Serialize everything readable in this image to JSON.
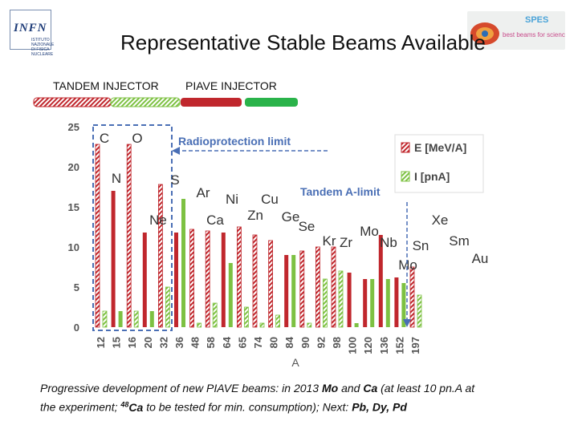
{
  "title": "Representative Stable Beams Available",
  "logos": {
    "left_text": "INFN",
    "left_subtitle": "ISTITUTO NAZIONALE DI FISICA NUCLEARE",
    "right_text": "SPES",
    "right_tagline": "best beams for science"
  },
  "injectors": {
    "tandem": "TANDEM INJECTOR",
    "piave": "PIAVE INJECTOR"
  },
  "colors": {
    "energy": "#c0272d",
    "current": "#7dc142",
    "tandem_box": "#4a6fb5",
    "annotation": "#4a6fb5"
  },
  "chart_data": {
    "type": "bar",
    "xlabel": "A",
    "ylabel": "",
    "ylim": [
      0,
      25
    ],
    "yticks": [
      0,
      5,
      10,
      15,
      20,
      25
    ],
    "grid": false,
    "legend_position": "top-right",
    "categories": [
      "12",
      "15",
      "16",
      "20",
      "32",
      "36",
      "48",
      "58",
      "64",
      "65",
      "74",
      "80",
      "84",
      "90",
      "92",
      "98",
      "100",
      "120",
      "136",
      "152",
      "197"
    ],
    "elements": [
      "C",
      "N",
      "O",
      "Ne",
      "S",
      "Ar",
      "Ca",
      "Ni",
      "Zn",
      "Cu",
      "Ge",
      "Se",
      "Kr",
      "Zr",
      "Mo",
      "Nb",
      "Mo",
      "Sn",
      "Xe",
      "Sm",
      "Au"
    ],
    "series": [
      {
        "name": "E [MeV/A]",
        "values": [
          22.8,
          17.0,
          22.8,
          11.8,
          17.8,
          11.8,
          12.2,
          12.0,
          11.8,
          12.5,
          11.5,
          10.8,
          9.0,
          9.5,
          10.0,
          10.0,
          6.8,
          6.0,
          11.5,
          6.2,
          7.5
        ]
      },
      {
        "name": "I [pnA]",
        "values": [
          2.0,
          2.0,
          2.0,
          2.0,
          5.0,
          16.0,
          0.5,
          3.0,
          8.0,
          2.5,
          0.5,
          1.5,
          9.0,
          0.5,
          6.0,
          7.0,
          0.5,
          6.0,
          6.0,
          5.5,
          4.0
        ]
      }
    ],
    "piave_hatched": [
      true,
      false,
      true,
      false,
      true,
      false,
      true,
      true,
      false,
      true,
      true,
      true,
      false,
      true,
      true,
      true,
      false,
      false,
      false,
      false,
      true
    ],
    "annotations": {
      "radioprotection": "Radioprotection limit",
      "tandem_limit": "Tandem A-limit"
    }
  },
  "caption": {
    "line1_prefix": "Progressive development of new PIAVE beams: in 2013 ",
    "mo": "Mo",
    "and": " and ",
    "ca": "Ca",
    "line1_suffix": " (at least 10 pn.A at",
    "line2_prefix": "the experiment; ",
    "sup48": "48",
    "ca48": "Ca",
    "line2_mid": " to be tested for min. consumption); Next: ",
    "next": "Pb, Dy, Pd"
  }
}
